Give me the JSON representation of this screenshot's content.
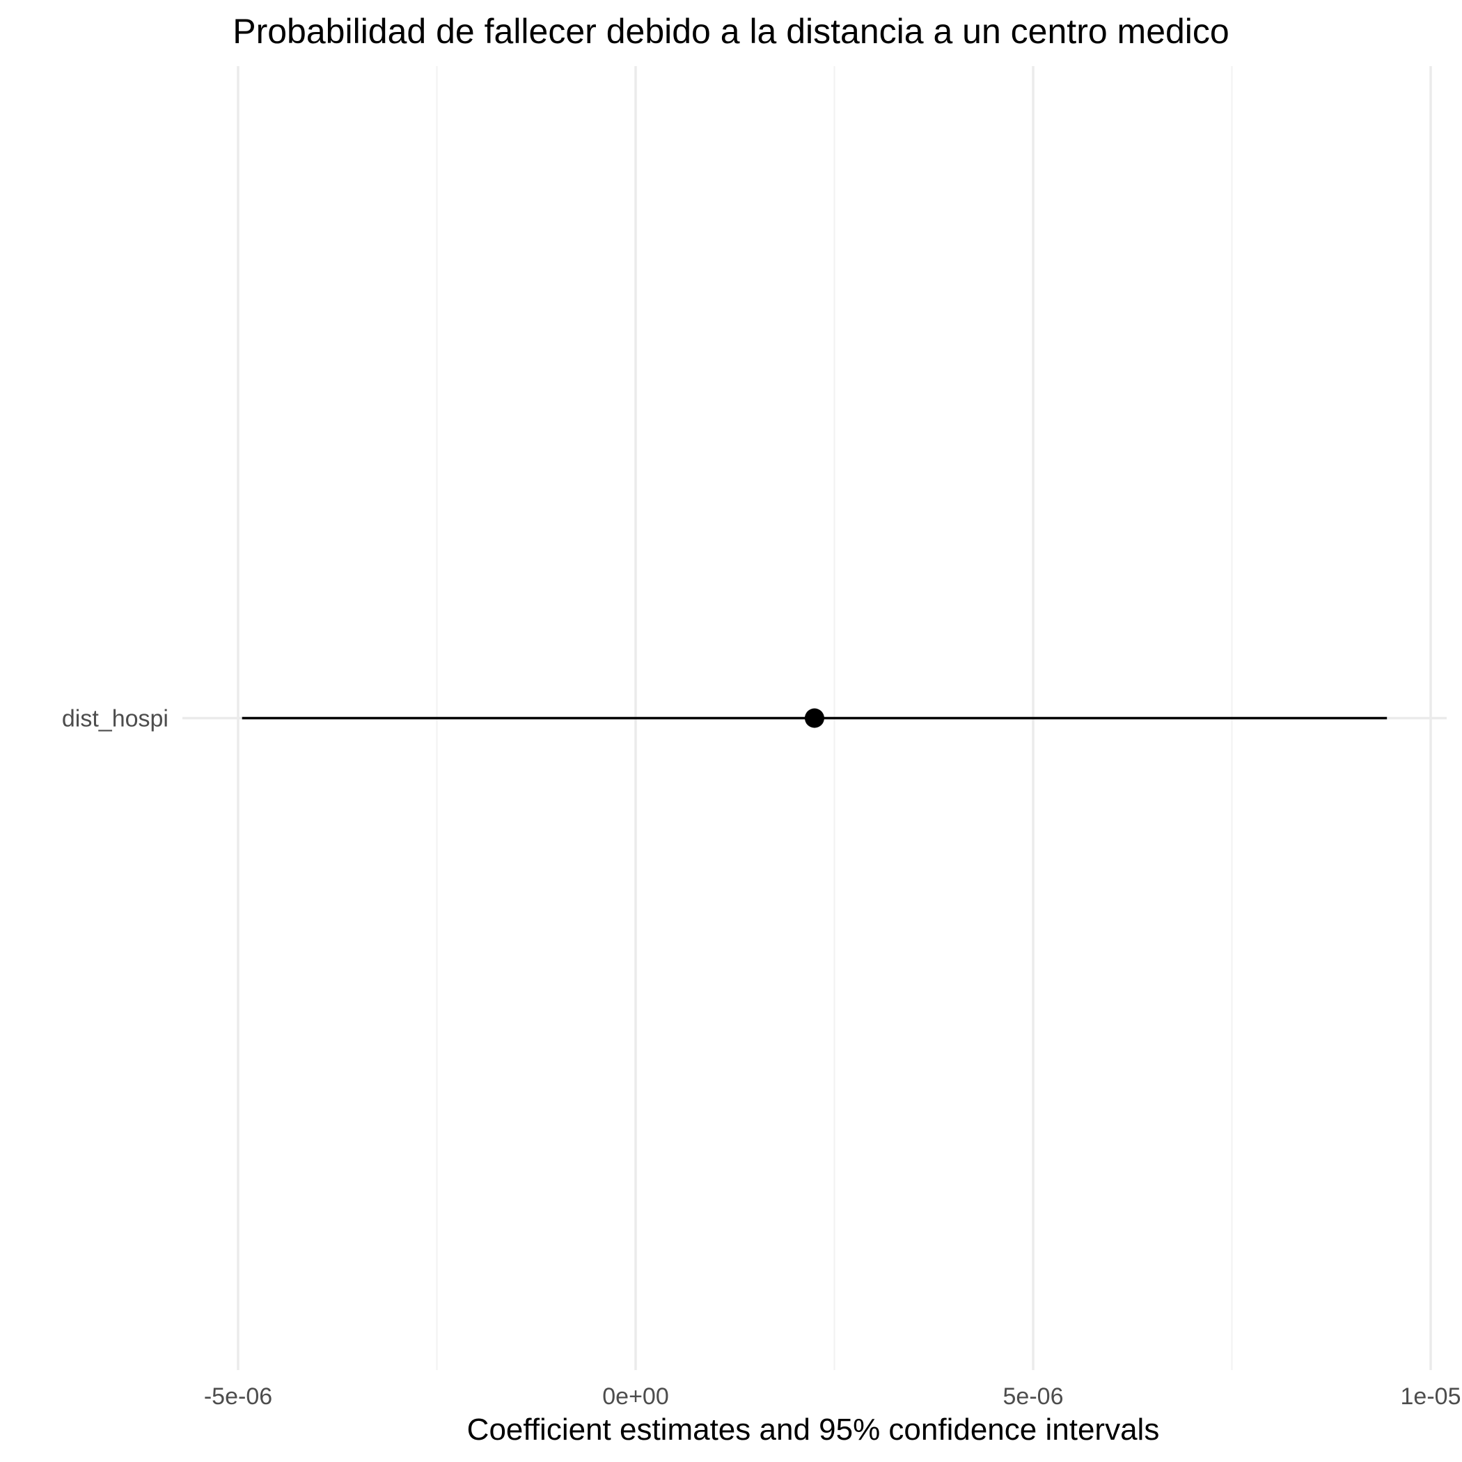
{
  "chart_data": {
    "type": "scatter",
    "title": "Probabilidad de fallecer debido a la distancia a un centro medico",
    "xlabel": "Coefficient estimates and 95% confidence intervals",
    "ylabel": "",
    "xlim": [
      -5e-06,
      1e-05
    ],
    "x_ticks": [
      {
        "value": -5e-06,
        "label": "-5e-06"
      },
      {
        "value": 0,
        "label": "0e+00"
      },
      {
        "value": 5e-06,
        "label": "5e-06"
      },
      {
        "value": 1e-05,
        "label": "1e-05"
      }
    ],
    "x_minor_ticks": [
      -2.5e-06,
      2.5e-06,
      7.5e-06
    ],
    "grid": true,
    "legend": "none",
    "terms": [
      {
        "term": "dist_hospi",
        "estimate": 2.25e-06,
        "conf_low": -4.95e-06,
        "conf_high": 9.45e-06
      }
    ],
    "colors": {
      "point": "#000000",
      "interval": "#000000",
      "grid": "#ebebeb",
      "tick_text": "#4d4d4d"
    }
  }
}
